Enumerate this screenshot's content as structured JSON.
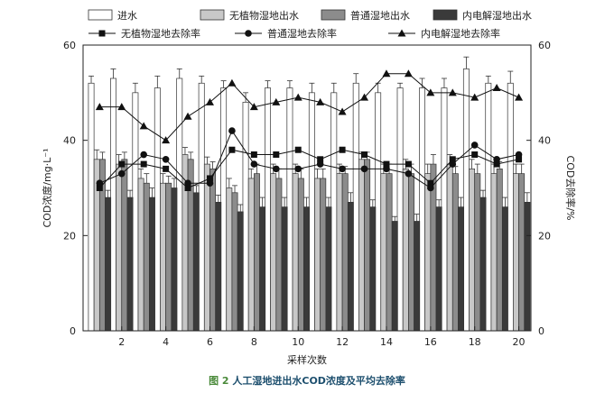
{
  "chart_data": {
    "type": "bar",
    "x": [
      1,
      2,
      3,
      4,
      5,
      6,
      7,
      8,
      9,
      10,
      11,
      12,
      13,
      14,
      15,
      16,
      17,
      18,
      19,
      20
    ],
    "xlabel": "采样次数",
    "ylabel_left": "COD浓度/mg·L⁻¹",
    "ylabel_right": "COD去除率/%",
    "ylim_left": [
      0,
      60
    ],
    "ylim_right": [
      0,
      60
    ],
    "yticks_left": [
      0,
      20,
      40,
      60
    ],
    "yticks_right": [
      0,
      20,
      40,
      60
    ],
    "xticks": [
      2,
      4,
      6,
      8,
      10,
      12,
      14,
      16,
      18,
      20
    ],
    "bar_series": [
      {
        "name": "进水",
        "values": [
          52,
          53,
          50,
          51,
          53,
          52,
          51,
          48,
          51,
          51,
          50,
          50,
          52,
          50,
          51,
          51,
          51,
          55,
          52,
          52
        ],
        "errors": [
          1.5,
          2,
          2,
          2.5,
          2,
          1.5,
          1.5,
          2,
          1.5,
          1.5,
          2,
          2,
          2,
          2,
          1,
          2,
          2,
          2.5,
          1.5,
          2.5
        ]
      },
      {
        "name": "无植物湿地出水",
        "values": [
          36,
          35,
          32,
          31,
          37,
          35,
          30,
          32,
          33,
          33,
          32,
          33,
          36,
          33,
          34,
          33,
          35,
          34,
          33,
          33
        ],
        "errors": [
          2,
          2,
          2,
          2,
          1.5,
          1.5,
          2,
          2,
          2,
          2,
          2,
          2,
          1.5,
          2,
          2,
          2,
          2,
          2,
          2,
          2
        ]
      },
      {
        "name": "普通湿地出水",
        "values": [
          36,
          36,
          31,
          31,
          36,
          34,
          29,
          33,
          32,
          32,
          32,
          33,
          36,
          33,
          33,
          35,
          33,
          33,
          34,
          33
        ],
        "errors": [
          1.5,
          1.5,
          2,
          1.5,
          1.5,
          1.5,
          1.5,
          2,
          2,
          2,
          2,
          1.5,
          1.5,
          2,
          2,
          2,
          1.5,
          2,
          1.5,
          2
        ]
      },
      {
        "name": "内电解湿地出水",
        "values": [
          28,
          28,
          28,
          30,
          29,
          27,
          25,
          26,
          26,
          26,
          26,
          27,
          26,
          23,
          23,
          26,
          26,
          28,
          26,
          27
        ],
        "errors": [
          1.5,
          1.5,
          2,
          2,
          1.5,
          1.5,
          1.5,
          2,
          2,
          2,
          2,
          2,
          1.5,
          1,
          1.5,
          1.5,
          2,
          1.5,
          2,
          2
        ]
      }
    ],
    "line_series": [
      {
        "name": "无植物湿地去除率",
        "marker": "square",
        "values": [
          30,
          35,
          35,
          34,
          30,
          32,
          38,
          37,
          37,
          38,
          36,
          38,
          37,
          35,
          35,
          31,
          36,
          37,
          35,
          36
        ]
      },
      {
        "name": "普通湿地去除率",
        "marker": "circle",
        "values": [
          31,
          33,
          37,
          36,
          31,
          31,
          42,
          35,
          34,
          34,
          35,
          34,
          34,
          34,
          33,
          30,
          35,
          39,
          36,
          37
        ]
      },
      {
        "name": "内电解湿地去除率",
        "marker": "triangle",
        "values": [
          47,
          47,
          43,
          40,
          45,
          48,
          52,
          47,
          48,
          49,
          48,
          46,
          49,
          54,
          54,
          50,
          50,
          49,
          51,
          49
        ]
      }
    ],
    "bar_colors": [
      "#ffffff",
      "#c8c8c8",
      "#8c8c8c",
      "#3a3a3a"
    ]
  },
  "caption": {
    "figure_label": "图 2",
    "text": " 人工湿地进出水COD浓度及平均去除率"
  }
}
